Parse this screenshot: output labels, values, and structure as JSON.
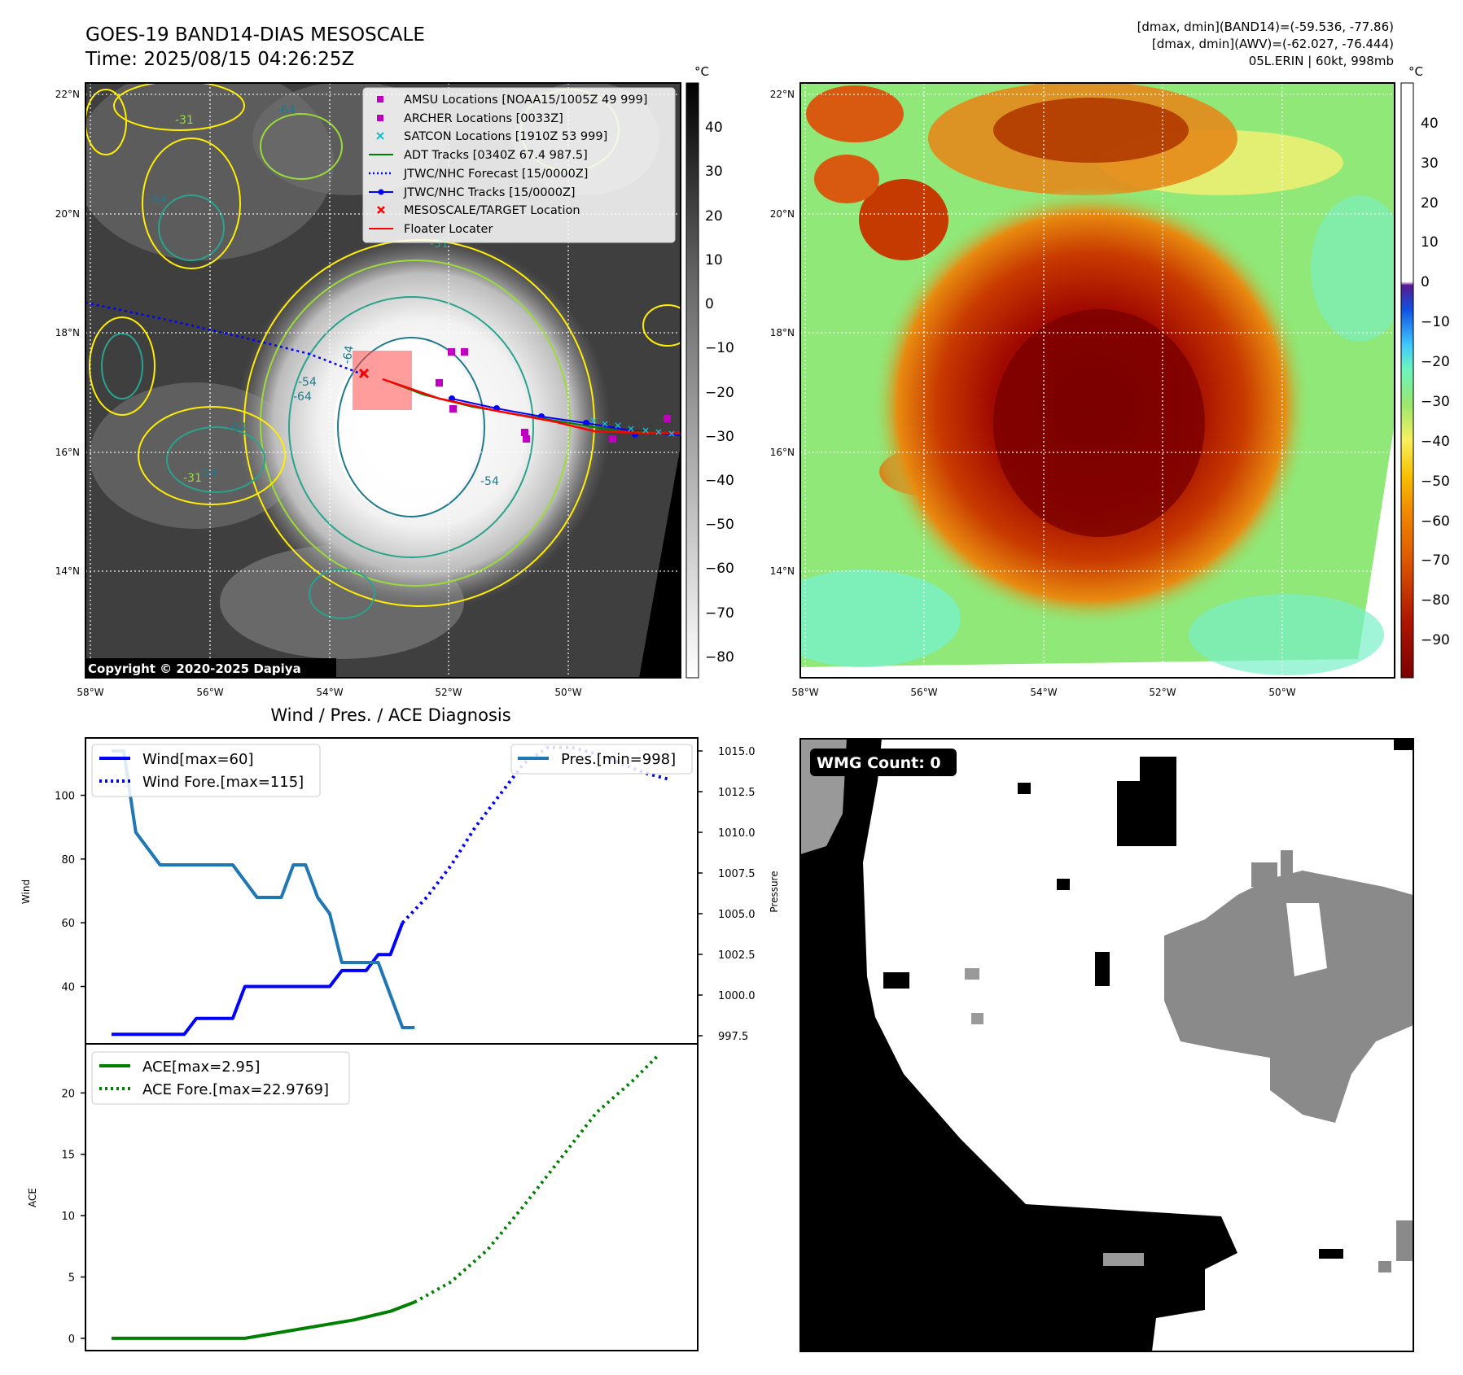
{
  "header": {
    "title_line1": "GOES-19 BAND14-DIAS MESOSCALE",
    "title_line2": "Time: 2025/08/15 04:26:25Z",
    "info_line1": "[dmax, dmin](BAND14)=(-59.536, -77.86)",
    "info_line2": "[dmax, dmin](AWV)=(-62.027, -76.444)",
    "info_line3": "05L.ERIN | 60kt, 998mb"
  },
  "copyright": "Copyright © 2020-2025 Dapiya",
  "map": {
    "lon_ticks": [
      "58°W",
      "56°W",
      "54°W",
      "52°W",
      "50°W"
    ],
    "lat_ticks": [
      "22°N",
      "20°N",
      "18°N",
      "16°N",
      "14°N"
    ],
    "contour_labels": [
      "-64",
      "-54",
      "-31",
      "-64",
      "-54",
      "-31",
      "-64",
      "-54",
      "-31",
      "-64",
      "-54"
    ]
  },
  "colorbar_left": {
    "unit": "°C",
    "ticks": [
      "40",
      "30",
      "20",
      "10",
      "0",
      "−10",
      "−20",
      "−30",
      "−40",
      "−50",
      "−60",
      "−70",
      "−80"
    ]
  },
  "colorbar_right": {
    "unit": "°C",
    "ticks": [
      "40",
      "30",
      "20",
      "10",
      "0",
      "−10",
      "−20",
      "−30",
      "−40",
      "−50",
      "−60",
      "−70",
      "−80",
      "−90"
    ]
  },
  "map_legend": [
    {
      "label": "AMSU Locations [NOAA15/1005Z 49 999]",
      "color": "#c000c0"
    },
    {
      "label": "ARCHER Locations [0033Z]",
      "color": "#c000c0"
    },
    {
      "label": "SATCON Locations [1910Z 53 999]",
      "color": "#17becf"
    },
    {
      "label": "ADT Tracks [0340Z 67.4 987.5]",
      "color": "#008000"
    },
    {
      "label": "JTWC/NHC Forecast [15/0000Z]",
      "color": "#0000ff"
    },
    {
      "label": "JTWC/NHC Tracks [15/0000Z]",
      "color": "#0000ff"
    },
    {
      "label": "MESOSCALE/TARGET Location",
      "color": "#ff0000"
    },
    {
      "label": "Floater Locater",
      "color": "#ff0000"
    }
  ],
  "diag": {
    "title": "Wind / Pres. / ACE Diagnosis",
    "wind_label": "Wind",
    "pressure_label": "Pressure",
    "ace_label": "ACE",
    "legend_wind": "Wind[max=60]",
    "legend_wind_fore": "Wind Fore.[max=115]",
    "legend_pres": "Pres.[min=998]",
    "legend_ace": "ACE[max=2.95]",
    "legend_ace_fore": "ACE Fore.[max=22.9769]"
  },
  "wmg": {
    "label": "WMG Count: 0"
  },
  "chart_data": [
    {
      "type": "line",
      "title": "Wind / Pres. / ACE Diagnosis",
      "ylabel": "Wind",
      "y2label": "Pressure",
      "ylim": [
        22,
        118
      ],
      "y2lim": [
        997.0,
        1015.8
      ],
      "yticks": [
        "40",
        "60",
        "80",
        "100"
      ],
      "y2ticks": [
        "997.5",
        "1000.0",
        "1002.5",
        "1005.0",
        "1007.5",
        "1010.0",
        "1012.5",
        "1015.0"
      ],
      "series": [
        {
          "name": "Wind[max=60]",
          "axis": "left",
          "style": "solid",
          "color": "#0000ff",
          "values": [
            [
              0,
              25
            ],
            [
              1,
              25
            ],
            [
              2,
              25
            ],
            [
              3,
              25
            ],
            [
              4,
              25
            ],
            [
              5,
              25
            ],
            [
              6,
              25
            ],
            [
              7,
              30
            ],
            [
              8,
              30
            ],
            [
              9,
              30
            ],
            [
              10,
              30
            ],
            [
              11,
              40
            ],
            [
              12,
              40
            ],
            [
              13,
              40
            ],
            [
              14,
              40
            ],
            [
              15,
              40
            ],
            [
              16,
              40
            ],
            [
              17,
              40
            ],
            [
              18,
              40
            ],
            [
              19,
              45
            ],
            [
              20,
              45
            ],
            [
              21,
              45
            ],
            [
              22,
              50
            ],
            [
              23,
              50
            ],
            [
              24,
              60
            ]
          ]
        },
        {
          "name": "Wind Fore.[max=115]",
          "axis": "left",
          "style": "dotted",
          "color": "#0000ff",
          "values": [
            [
              24,
              60
            ],
            [
              26,
              68
            ],
            [
              28,
              78
            ],
            [
              30,
              90
            ],
            [
              32,
              100
            ],
            [
              34,
              110
            ],
            [
              36,
              115
            ],
            [
              38,
              115
            ],
            [
              40,
              113
            ],
            [
              42,
              110
            ],
            [
              44,
              107
            ],
            [
              46,
              105
            ]
          ]
        },
        {
          "name": "Pres.[min=998]",
          "axis": "right",
          "style": "solid",
          "color": "#1f77b4",
          "values": [
            [
              0,
              1015
            ],
            [
              1,
              1015
            ],
            [
              2,
              1010
            ],
            [
              3,
              1009
            ],
            [
              4,
              1008
            ],
            [
              5,
              1008
            ],
            [
              6,
              1008
            ],
            [
              7,
              1008
            ],
            [
              8,
              1008
            ],
            [
              9,
              1008
            ],
            [
              10,
              1008
            ],
            [
              11,
              1007
            ],
            [
              12,
              1006
            ],
            [
              13,
              1006
            ],
            [
              14,
              1006
            ],
            [
              15,
              1008
            ],
            [
              16,
              1008
            ],
            [
              17,
              1006
            ],
            [
              18,
              1005
            ],
            [
              19,
              1002
            ],
            [
              20,
              1002
            ],
            [
              21,
              1002
            ],
            [
              22,
              1002
            ],
            [
              23,
              1000
            ],
            [
              24,
              998
            ],
            [
              25,
              998
            ]
          ]
        }
      ]
    },
    {
      "type": "line",
      "ylabel": "ACE",
      "ylim": [
        -1,
        24
      ],
      "yticks": [
        "0",
        "5",
        "10",
        "15",
        "20"
      ],
      "series": [
        {
          "name": "ACE[max=2.95]",
          "style": "solid",
          "color": "#008000",
          "values": [
            [
              0,
              0
            ],
            [
              11,
              0
            ],
            [
              14,
              0.5
            ],
            [
              17,
              1.0
            ],
            [
              20,
              1.5
            ],
            [
              23,
              2.2
            ],
            [
              25,
              2.95
            ]
          ]
        },
        {
          "name": "ACE Fore.[max=22.9769]",
          "style": "dotted",
          "color": "#008000",
          "values": [
            [
              25,
              2.95
            ],
            [
              28,
              4.6
            ],
            [
              31,
              7.2
            ],
            [
              34,
              10.8
            ],
            [
              37,
              14.6
            ],
            [
              40,
              18.4
            ],
            [
              43,
              21.0
            ],
            [
              45,
              22.98
            ]
          ]
        }
      ]
    }
  ]
}
